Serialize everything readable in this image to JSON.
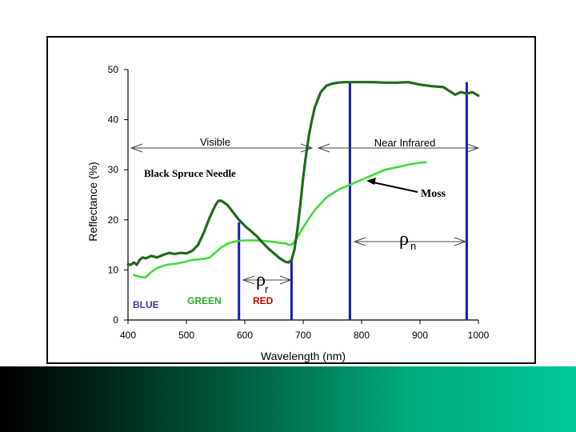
{
  "chart_data": {
    "type": "line",
    "xlabel": "Wavelength (nm)",
    "ylabel": "Reflectance  (%)",
    "xlim": [
      400,
      1000
    ],
    "ylim": [
      0,
      50
    ],
    "x_ticks": [
      "400",
      "500",
      "600",
      "700",
      "800",
      "900",
      "1000"
    ],
    "y_ticks": [
      "0",
      "10",
      "20",
      "30",
      "40",
      "50"
    ],
    "grid": false,
    "series": [
      {
        "name": "Black Spruce Needle",
        "color": "#1e6b1e",
        "x": [
          400,
          405,
          410,
          415,
          420,
          425,
          430,
          440,
          450,
          460,
          470,
          480,
          490,
          500,
          510,
          520,
          530,
          540,
          550,
          555,
          560,
          570,
          580,
          590,
          600,
          610,
          620,
          630,
          640,
          650,
          660,
          670,
          675,
          680,
          685,
          690,
          695,
          700,
          705,
          710,
          715,
          720,
          730,
          740,
          750,
          760,
          770,
          780,
          790,
          800,
          820,
          840,
          860,
          880,
          900,
          920,
          940,
          960,
          970,
          980,
          990,
          1000
        ],
        "y": [
          11.1,
          11.0,
          11.5,
          11.0,
          12.0,
          12.5,
          12.3,
          12.8,
          12.5,
          13.0,
          13.4,
          13.2,
          13.4,
          13.3,
          13.8,
          15.0,
          17.5,
          20.5,
          23.0,
          23.8,
          23.8,
          23.0,
          21.5,
          20.0,
          18.8,
          17.8,
          16.8,
          15.5,
          14.3,
          13.3,
          12.3,
          11.6,
          11.5,
          12.0,
          14.0,
          18.0,
          23.0,
          28.5,
          33.0,
          37.0,
          40.0,
          42.5,
          45.5,
          46.8,
          47.2,
          47.4,
          47.5,
          47.5,
          47.5,
          47.5,
          47.5,
          47.4,
          47.4,
          47.5,
          47.0,
          46.7,
          46.5,
          45.0,
          45.5,
          45.2,
          45.5,
          44.8
        ]
      },
      {
        "name": "Moss",
        "color": "#3ddc3d",
        "x": [
          410,
          420,
          430,
          440,
          450,
          460,
          470,
          480,
          490,
          500,
          510,
          520,
          530,
          540,
          550,
          560,
          570,
          580,
          590,
          600,
          610,
          620,
          630,
          640,
          650,
          660,
          670,
          675,
          680,
          685,
          690,
          700,
          710,
          720,
          740,
          760,
          780,
          800,
          820,
          840,
          860,
          880,
          900,
          910
        ],
        "y": [
          9.0,
          8.6,
          8.5,
          9.6,
          10.4,
          10.8,
          11.1,
          11.2,
          11.4,
          11.7,
          12.0,
          12.1,
          12.2,
          12.5,
          13.5,
          14.5,
          15.2,
          15.6,
          15.8,
          15.9,
          15.9,
          15.9,
          15.8,
          15.7,
          15.6,
          15.4,
          15.3,
          15.0,
          15.0,
          15.6,
          16.5,
          18.5,
          20.3,
          22.0,
          24.5,
          26.0,
          27.0,
          28.0,
          29.0,
          30.0,
          30.5,
          31.0,
          31.4,
          31.5
        ]
      }
    ],
    "band_markers_x": [
      590,
      680,
      780,
      980
    ],
    "annotations": {
      "visible": "Visible",
      "near_infrared": "Near Infrared",
      "black_spruce": "Black Spruce Needle",
      "moss": "Moss",
      "rho": "ρ",
      "rho_n_sub": "n",
      "rho_r_sub": "r",
      "blue": "BLUE",
      "green": "GREEN",
      "red": "RED"
    },
    "colors": {
      "axis": "#000000",
      "marker": "#1a1ab0",
      "blue_label": "#3a3aa0",
      "green_label": "#2aaa2a",
      "red_label": "#cc0000"
    }
  }
}
